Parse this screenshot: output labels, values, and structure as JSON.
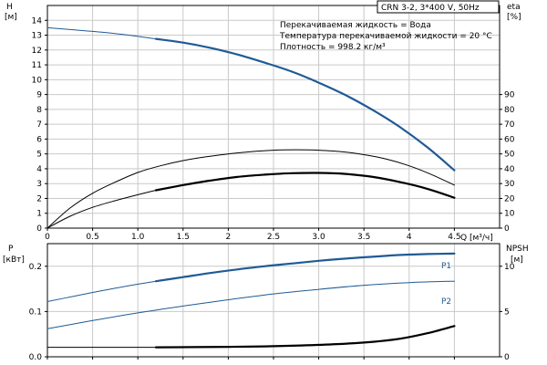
{
  "header": {
    "model": "CRN 3-2, 3*400 V, 50Hz",
    "info_lines": [
      "Перекачиваемая жидкость = Вода",
      "Температура перекачиваемой жидкости = 20 °C",
      "Плотность = 998.2 кг/м³"
    ]
  },
  "chart_data": [
    {
      "type": "line",
      "name": "H/eta vs Q",
      "x_axis": {
        "label": "Q [м³/ч]",
        "range": [
          0,
          5
        ],
        "ticks": [
          0,
          0.5,
          1.0,
          1.5,
          2,
          2.5,
          3.0,
          3.5,
          4,
          4.5
        ],
        "tick_labels": [
          "0",
          "0.5",
          "1.0",
          "1.5",
          "2",
          "2.5",
          "3.0",
          "3.5",
          "4",
          "4.5"
        ],
        "grid": true
      },
      "y_left": {
        "label_top": "H",
        "label_unit": "[м]",
        "range": [
          0,
          15
        ],
        "ticks": [
          0,
          1,
          2,
          3,
          4,
          5,
          6,
          7,
          8,
          9,
          10,
          11,
          12,
          13,
          14
        ],
        "tick_labels": [
          "0",
          "1",
          "2",
          "3",
          "4",
          "5",
          "6",
          "7",
          "8",
          "9",
          "10",
          "11",
          "12",
          "13",
          "14"
        ],
        "grid": true
      },
      "y_right": {
        "label_top": "eta",
        "label_unit": "[%]",
        "range": [
          0,
          150
        ],
        "ticks": [
          0,
          10,
          20,
          30,
          40,
          50,
          60,
          70,
          80,
          90
        ],
        "tick_labels": [
          "0",
          "10",
          "20",
          "30",
          "40",
          "50",
          "60",
          "70",
          "80",
          "90"
        ]
      },
      "series": [
        {
          "id": "head",
          "axis": "left",
          "color": "#1f5a95",
          "segments": [
            {
              "style": "thin",
              "x": [
                0,
                0.3,
                0.6,
                0.9,
                1.2
              ],
              "y": [
                13.5,
                13.35,
                13.2,
                13.0,
                12.75
              ]
            },
            {
              "style": "thick",
              "x": [
                1.2,
                1.5,
                1.8,
                2.1,
                2.4,
                2.7,
                3.0,
                3.3,
                3.6,
                3.9,
                4.2,
                4.5
              ],
              "y": [
                12.75,
                12.5,
                12.15,
                11.7,
                11.15,
                10.55,
                9.8,
                8.95,
                7.95,
                6.8,
                5.45,
                3.9
              ]
            }
          ]
        },
        {
          "id": "eta_outer",
          "axis": "left",
          "color": "#000000",
          "segments": [
            {
              "style": "thin",
              "x": [
                0,
                0.25,
                0.5,
                0.75,
                1.0,
                1.25,
                1.5,
                1.75,
                2.0,
                2.25,
                2.5,
                2.75,
                3.0,
                3.25,
                3.5,
                3.75,
                4.0,
                4.25,
                4.5
              ],
              "y": [
                0,
                1.35,
                2.35,
                3.1,
                3.75,
                4.2,
                4.55,
                4.8,
                5.0,
                5.15,
                5.25,
                5.28,
                5.25,
                5.15,
                4.95,
                4.65,
                4.2,
                3.6,
                2.9
              ]
            }
          ]
        },
        {
          "id": "eta_inner",
          "axis": "left",
          "color": "#000000",
          "segments": [
            {
              "style": "thin",
              "x": [
                0,
                0.25,
                0.5,
                0.75,
                1.0,
                1.2
              ],
              "y": [
                0,
                0.8,
                1.4,
                1.85,
                2.25,
                2.55
              ]
            },
            {
              "style": "thick",
              "x": [
                1.2,
                1.5,
                1.8,
                2.1,
                2.4,
                2.7,
                3.0,
                3.3,
                3.6,
                3.9,
                4.2,
                4.5
              ],
              "y": [
                2.55,
                2.9,
                3.2,
                3.45,
                3.6,
                3.7,
                3.72,
                3.65,
                3.45,
                3.1,
                2.65,
                2.05
              ]
            }
          ]
        }
      ]
    },
    {
      "type": "line",
      "name": "P/NPSH vs Q",
      "x_axis": {
        "range": [
          0,
          5
        ],
        "ticks": [
          0,
          0.5,
          1.0,
          1.5,
          2,
          2.5,
          3.0,
          3.5,
          4,
          4.5
        ],
        "grid": true
      },
      "y_left": {
        "label_top": "P",
        "label_unit": "[кВт]",
        "range": [
          0,
          0.25
        ],
        "ticks": [
          0,
          0.1,
          0.2
        ],
        "tick_labels": [
          "0.0",
          "0.1",
          "0.2"
        ],
        "grid": true
      },
      "y_right": {
        "label_top": "NPSH",
        "label_unit": "[м]",
        "range": [
          0,
          12.5
        ],
        "ticks": [
          0,
          5,
          10
        ],
        "tick_labels": [
          "0",
          "5",
          "10"
        ]
      },
      "series": [
        {
          "id": "p1",
          "name": "P1",
          "axis": "left",
          "color": "#1f5a95",
          "segments": [
            {
              "style": "thin",
              "x": [
                0,
                0.3,
                0.6,
                0.9,
                1.2
              ],
              "y": [
                0.122,
                0.134,
                0.146,
                0.157,
                0.167
              ]
            },
            {
              "style": "thick",
              "x": [
                1.2,
                1.5,
                1.8,
                2.1,
                2.4,
                2.7,
                3.0,
                3.3,
                3.6,
                3.9,
                4.2,
                4.5
              ],
              "y": [
                0.167,
                0.176,
                0.185,
                0.193,
                0.2,
                0.206,
                0.212,
                0.217,
                0.221,
                0.225,
                0.227,
                0.228
              ]
            }
          ]
        },
        {
          "id": "p2",
          "name": "P2",
          "axis": "left",
          "color": "#1f5a95",
          "segments": [
            {
              "style": "thin",
              "x": [
                0,
                0.5,
                1.0,
                1.5,
                2.0,
                2.5,
                3.0,
                3.5,
                4.0,
                4.5
              ],
              "y": [
                0.062,
                0.08,
                0.097,
                0.112,
                0.126,
                0.139,
                0.149,
                0.158,
                0.164,
                0.167
              ]
            }
          ]
        },
        {
          "id": "npsh",
          "axis": "right",
          "color": "#000000",
          "segments": [
            {
              "style": "thin",
              "x": [
                0,
                0.4,
                0.8,
                1.2
              ],
              "y": [
                1.05,
                1.05,
                1.05,
                1.05
              ]
            },
            {
              "style": "thick",
              "x": [
                1.2,
                1.6,
                2.0,
                2.4,
                2.8,
                3.2,
                3.6,
                3.9,
                4.2,
                4.5
              ],
              "y": [
                1.05,
                1.07,
                1.1,
                1.15,
                1.25,
                1.4,
                1.65,
                2.0,
                2.6,
                3.4
              ]
            }
          ]
        }
      ]
    }
  ]
}
